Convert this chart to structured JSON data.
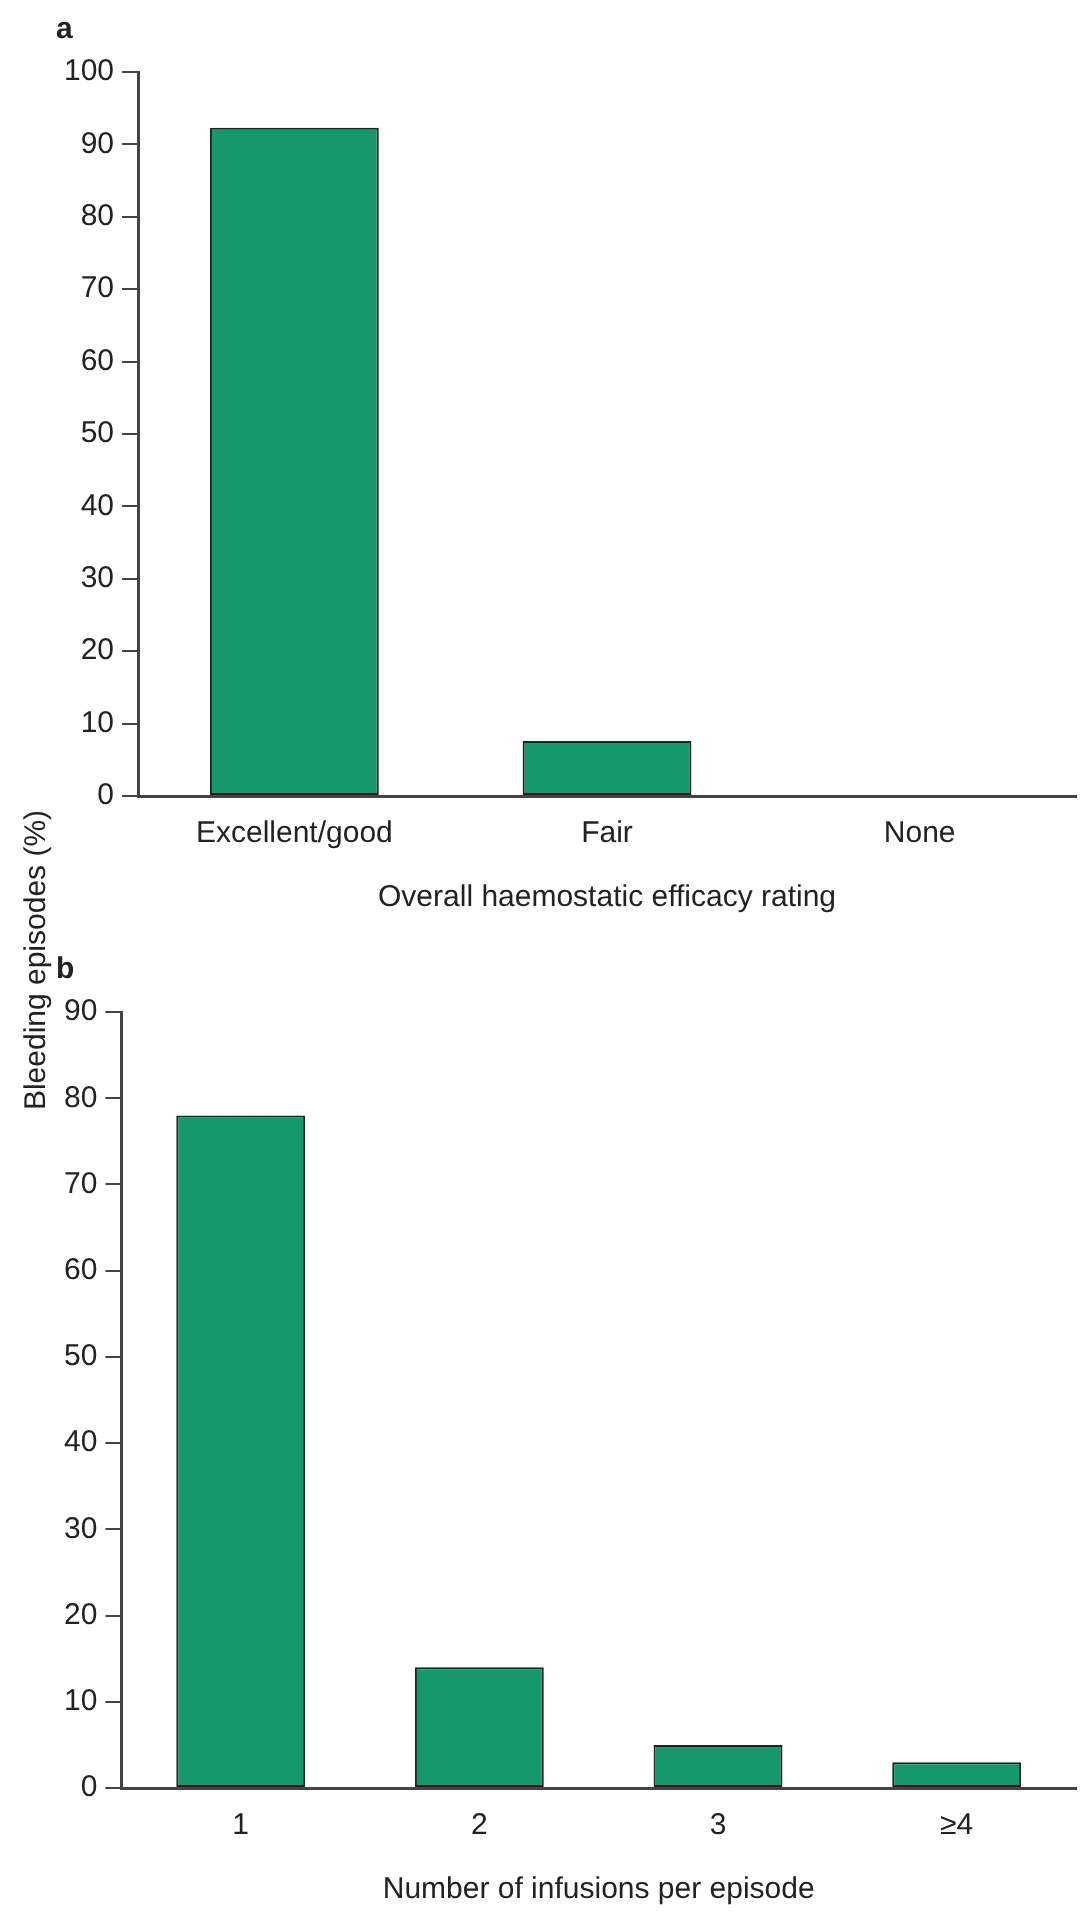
{
  "chart_data": [
    {
      "type": "bar",
      "title": "a",
      "ylabel": "Bleeding episodes (%)",
      "xlabel": "Overall haemostatic efficacy rating",
      "categories": [
        "Excellent/good",
        "Fair",
        "None"
      ],
      "values": [
        92.3,
        7.6,
        0
      ],
      "color": "#17986b",
      "ylim": [
        0,
        100
      ],
      "yticks": [
        0,
        10,
        20,
        30,
        40,
        50,
        60,
        70,
        80,
        90,
        100
      ],
      "grid": false,
      "legend": false
    },
    {
      "type": "bar",
      "title": "b",
      "xlabel": "Number of infusions per episode",
      "categories": [
        "1",
        "2",
        "3",
        "≥4"
      ],
      "values": [
        78,
        14,
        5,
        3
      ],
      "color": "#17986b",
      "ylim": [
        0,
        90
      ],
      "yticks": [
        0,
        10,
        20,
        30,
        40,
        50,
        60,
        70,
        80,
        90
      ],
      "grid": false,
      "legend": false
    }
  ]
}
